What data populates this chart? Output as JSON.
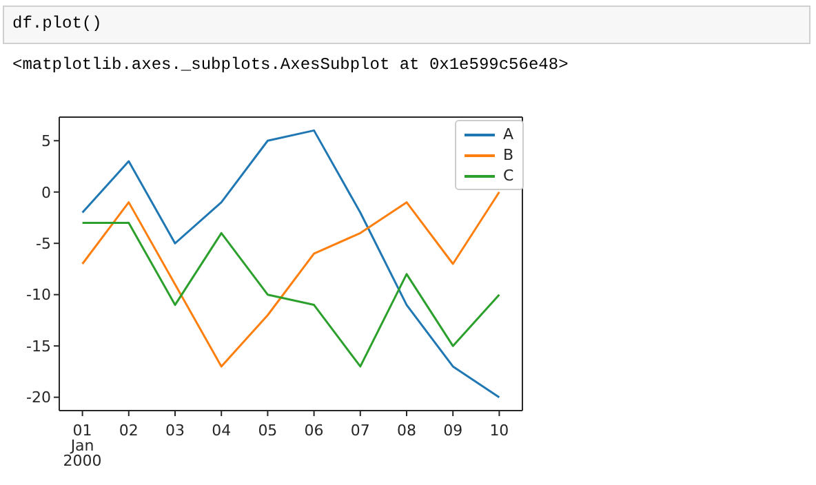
{
  "chart_data": {
    "type": "line",
    "annotations": [
      "df.plot()",
      "<matplotlib.axes._subplots.AxesSubplot at 0x1e599c56e48>"
    ],
    "x": [
      "2000-01-01",
      "2000-01-02",
      "2000-01-03",
      "2000-01-04",
      "2000-01-05",
      "2000-01-06",
      "2000-01-07",
      "2000-01-08",
      "2000-01-09",
      "2000-01-10"
    ],
    "series": [
      {
        "name": "A",
        "color": "#1f77b4",
        "values": [
          -2,
          3,
          -5,
          -1,
          5,
          6,
          -2,
          -11,
          -17,
          -20
        ]
      },
      {
        "name": "B",
        "color": "#ff7f0e",
        "values": [
          -7,
          -1,
          -9,
          -17,
          -12,
          -6,
          -4,
          -1,
          -7,
          0
        ]
      },
      {
        "name": "C",
        "color": "#2ca02c",
        "values": [
          -3,
          -3,
          -11,
          -4,
          -10,
          -11,
          -17,
          -8,
          -15,
          -10
        ]
      }
    ],
    "xlim": [
      "1999-12-31T12:00",
      "2000-01-10T12:00"
    ],
    "xticks": [
      {
        "value": "2000-01-01",
        "label": "01\nJan\n2000"
      },
      {
        "value": "2000-01-02",
        "label": "02"
      },
      {
        "value": "2000-01-03",
        "label": "03"
      },
      {
        "value": "2000-01-04",
        "label": "04"
      },
      {
        "value": "2000-01-05",
        "label": "05"
      },
      {
        "value": "2000-01-06",
        "label": "06"
      },
      {
        "value": "2000-01-07",
        "label": "07"
      },
      {
        "value": "2000-01-08",
        "label": "08"
      },
      {
        "value": "2000-01-09",
        "label": "09"
      },
      {
        "value": "2000-01-10",
        "label": "10"
      }
    ],
    "ylim": [
      -21.3,
      7.3
    ],
    "yticks": [
      -20,
      -15,
      -10,
      -5,
      0,
      5
    ],
    "grid": false,
    "legend": "top right",
    "marker": "none",
    "line_style": "solid"
  }
}
